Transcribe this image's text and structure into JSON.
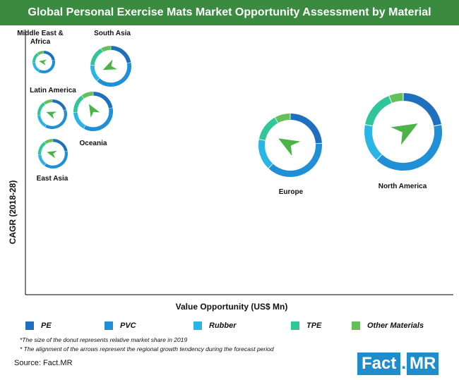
{
  "title": "Global Personal Exercise Mats Market Opportunity Assessment by Material",
  "chart_data": {
    "type": "donut-bubble",
    "xlabel": "Value Opportunity (US$ Mn)",
    "ylabel": "CAGR (2018-28)",
    "materials": [
      "PE",
      "PVC",
      "Rubber",
      "TPE",
      "Other Materials"
    ],
    "colors": {
      "PE": "#1f6fbf",
      "PVC": "#1f8fd6",
      "Rubber": "#29b6e6",
      "TPE": "#2fc79a",
      "Other Materials": "#66c05a"
    },
    "regions": [
      {
        "name": "Middle East & Africa",
        "shares": [
          0.22,
          0.36,
          0.16,
          0.16,
          0.1
        ],
        "arrow_angle": 170
      },
      {
        "name": "South Asia",
        "shares": [
          0.22,
          0.4,
          0.14,
          0.16,
          0.08
        ],
        "arrow_angle": 205
      },
      {
        "name": "Latin America",
        "shares": [
          0.2,
          0.38,
          0.16,
          0.16,
          0.1
        ],
        "arrow_angle": 160
      },
      {
        "name": "Oceania",
        "shares": [
          0.22,
          0.36,
          0.16,
          0.16,
          0.1
        ],
        "arrow_angle": 120
      },
      {
        "name": "East Asia",
        "shares": [
          0.22,
          0.38,
          0.14,
          0.16,
          0.1
        ],
        "arrow_angle": 165
      },
      {
        "name": "Europe",
        "shares": [
          0.24,
          0.38,
          0.16,
          0.14,
          0.08
        ],
        "arrow_angle": 150
      },
      {
        "name": "North America",
        "shares": [
          0.22,
          0.4,
          0.16,
          0.16,
          0.06
        ],
        "arrow_angle": 30
      }
    ]
  },
  "legend": [
    "PE",
    "PVC",
    "Rubber",
    "TPE",
    "Other Materials"
  ],
  "notes": {
    "size": "*The size of the donut represents relative market share in 2019",
    "arrows": "*  The alignment of the arrows represent the regional growth tendency during the forecast period"
  },
  "source": "Source: Fact.MR",
  "logo": {
    "fact": "Fact",
    "dot": ".",
    "mr": "MR"
  }
}
